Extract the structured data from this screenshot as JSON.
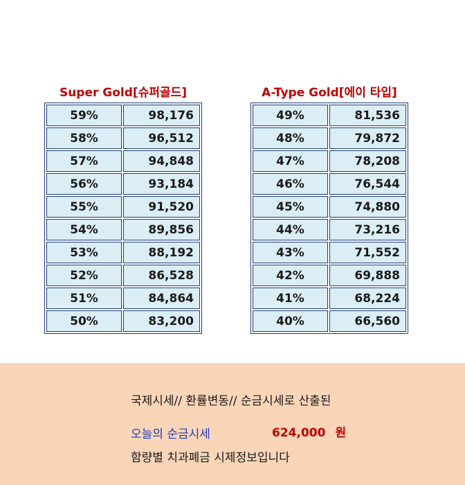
{
  "tables": [
    {
      "title": "Super Gold[슈퍼골드]",
      "rows": [
        {
          "pct": "59%",
          "value": "98,176"
        },
        {
          "pct": "58%",
          "value": "96,512"
        },
        {
          "pct": "57%",
          "value": "94,848"
        },
        {
          "pct": "56%",
          "value": "93,184"
        },
        {
          "pct": "55%",
          "value": "91,520"
        },
        {
          "pct": "54%",
          "value": "89,856"
        },
        {
          "pct": "53%",
          "value": "88,192"
        },
        {
          "pct": "52%",
          "value": "86,528"
        },
        {
          "pct": "51%",
          "value": "84,864"
        },
        {
          "pct": "50%",
          "value": "83,200"
        }
      ]
    },
    {
      "title": "A-Type Gold[에이 타입]",
      "rows": [
        {
          "pct": "49%",
          "value": "81,536"
        },
        {
          "pct": "48%",
          "value": "79,872"
        },
        {
          "pct": "47%",
          "value": "78,208"
        },
        {
          "pct": "46%",
          "value": "76,544"
        },
        {
          "pct": "45%",
          "value": "74,880"
        },
        {
          "pct": "44%",
          "value": "73,216"
        },
        {
          "pct": "43%",
          "value": "71,552"
        },
        {
          "pct": "42%",
          "value": "69,888"
        },
        {
          "pct": "41%",
          "value": "68,224"
        },
        {
          "pct": "40%",
          "value": "66,560"
        }
      ]
    }
  ],
  "footer": {
    "line1": "국제시세// 환률변동// 순금시세로 산출된",
    "line2_label": "오늘의 순금시세",
    "price_value": "624,000",
    "price_unit": "원",
    "line3": "함량별 치과폐금 시제정보입니다"
  },
  "colors": {
    "title_red": "#c00000",
    "cell_bg": "#dbeef6",
    "border_navy": "#1f3a7a",
    "footer_bg": "#fbd5b7",
    "label_blue": "#1f3fb0"
  }
}
